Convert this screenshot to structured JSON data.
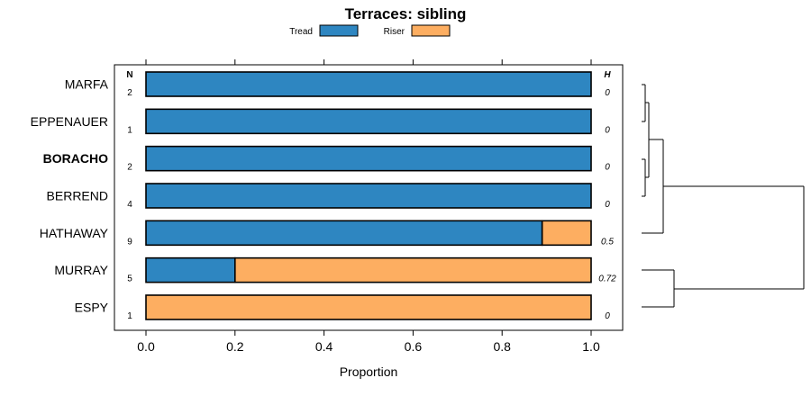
{
  "chart_data": {
    "type": "bar",
    "orientation": "horizontal",
    "stacked": true,
    "title": "Terraces: sibling",
    "xlabel": "Proportion",
    "ylabel": "",
    "xlim": [
      0,
      1
    ],
    "x_ticks": [
      "0.0",
      "0.2",
      "0.4",
      "0.6",
      "0.8",
      "1.0"
    ],
    "x_tick_values": [
      0,
      0.2,
      0.4,
      0.6,
      0.8,
      1.0
    ],
    "categories": [
      "MARFA",
      "EPPENAUER",
      "BORACHO",
      "BERREND",
      "HATHAWAY",
      "MURRAY",
      "ESPY"
    ],
    "highlighted_category": "BORACHO",
    "series": [
      {
        "name": "Tread",
        "color": "#2E86C1",
        "values": [
          1.0,
          1.0,
          1.0,
          1.0,
          0.89,
          0.2,
          0.0
        ]
      },
      {
        "name": "Riser",
        "color": "#FDAE61",
        "values": [
          0.0,
          0.0,
          0.0,
          0.0,
          0.11,
          0.8,
          1.0
        ]
      }
    ],
    "n_header": "N",
    "n_values": [
      "2",
      "1",
      "2",
      "4",
      "9",
      "5",
      "1"
    ],
    "h_header": "H",
    "h_values": [
      "0",
      "0",
      "0",
      "0",
      "0.5",
      "0.72",
      "0"
    ],
    "legend": [
      "Tread",
      "Riser"
    ],
    "legend_position": "top",
    "dendrogram": "present"
  }
}
